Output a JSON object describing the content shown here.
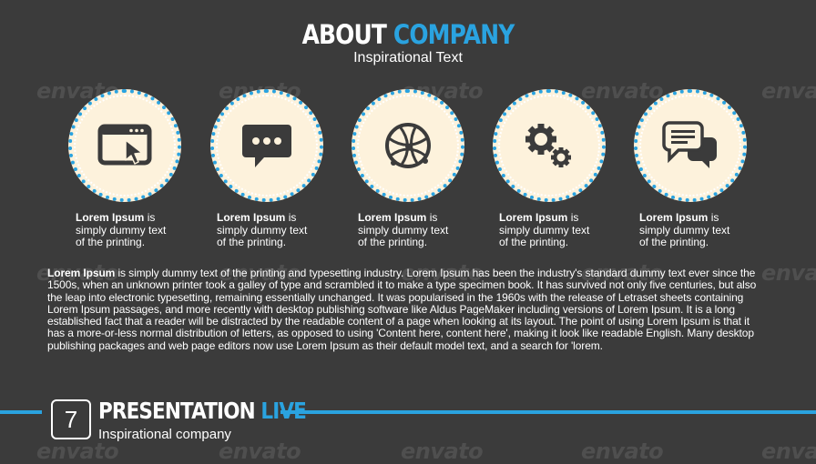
{
  "header": {
    "title_part1": "ABOUT",
    "title_part2": "COMPANY",
    "subtitle": "Inspirational Text"
  },
  "features": [
    {
      "icon": "browser-cursor-icon",
      "bold": "Lorem Ipsum",
      "text_rest": " is",
      "line2": "simply dummy text",
      "line3": "of the printing."
    },
    {
      "icon": "chat-bubble-dots-icon",
      "bold": "Lorem Ipsum",
      "text_rest": " is",
      "line2": "simply dummy text",
      "line3": "of the printing."
    },
    {
      "icon": "globe-network-icon",
      "bold": "Lorem Ipsum",
      "text_rest": " is",
      "line2": "simply dummy text",
      "line3": "of the printing."
    },
    {
      "icon": "gears-icon",
      "bold": "Lorem Ipsum",
      "text_rest": " is",
      "line2": "simply dummy text",
      "line3": "of the printing."
    },
    {
      "icon": "conversation-bubbles-icon",
      "bold": "Lorem Ipsum",
      "text_rest": " is",
      "line2": "simply dummy text",
      "line3": "of the printing."
    }
  ],
  "body": {
    "bold": "Lorem Ipsum",
    "text": " is simply dummy text of the printing and typesetting industry. Lorem Ipsum has been the industry's standard dummy text ever since the 1500s, when an unknown printer took a galley of type and scrambled it to make a type specimen book. It has survived not only five centuries, but also the leap into electronic typesetting, remaining essentially unchanged. It was popularised in the 1960s with the release of Letraset sheets containing Lorem Ipsum passages, and more recently with desktop publishing software like Aldus PageMaker including versions of Lorem Ipsum. It is a long established fact that a reader will be distracted by the readable content of a page when looking at its layout. The point of using Lorem Ipsum is that it has a more-or-less normal distribution of letters, as opposed to using 'Content here, content here', making it look like readable English. Many desktop publishing packages and web page editors now use Lorem Ipsum as their default model text, and a search for 'lorem."
  },
  "footer": {
    "number": "7",
    "title_part1": "PRESENTATION",
    "title_part2": "LIVE",
    "subtitle": "Inspirational company"
  },
  "watermark": "envato",
  "colors": {
    "background": "#3b3b3b",
    "accent": "#2aa3e0",
    "circle_fill": "#fdf2dc",
    "icon": "#3b3b3b",
    "text": "#ffffff"
  }
}
